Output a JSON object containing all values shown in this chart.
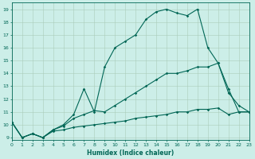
{
  "xlabel": "Humidex (Indice chaleur)",
  "bg_color": "#cceee8",
  "grid_color": "#aaccbb",
  "line_color": "#006655",
  "line1_x": [
    0,
    1,
    2,
    3,
    4,
    5,
    6,
    7,
    8,
    9,
    10,
    11,
    12,
    13,
    14,
    15,
    16,
    17,
    18,
    19,
    20,
    21,
    22,
    23
  ],
  "line1_y": [
    10.2,
    9.0,
    9.3,
    9.0,
    9.6,
    10.0,
    10.8,
    12.8,
    11.0,
    14.5,
    16.0,
    16.5,
    17.0,
    18.2,
    18.8,
    19.0,
    18.7,
    18.5,
    19.0,
    16.0,
    14.8,
    12.8,
    11.0,
    11.0
  ],
  "line2_x": [
    0,
    1,
    2,
    3,
    4,
    5,
    6,
    7,
    8,
    9,
    10,
    11,
    12,
    13,
    14,
    15,
    16,
    17,
    18,
    19,
    20,
    21,
    22,
    23
  ],
  "line2_y": [
    10.2,
    9.0,
    9.3,
    9.0,
    9.6,
    9.9,
    10.5,
    10.8,
    11.1,
    11.0,
    11.5,
    12.0,
    12.5,
    13.0,
    13.5,
    14.0,
    14.0,
    14.2,
    14.5,
    14.5,
    14.8,
    12.5,
    11.5,
    11.0
  ],
  "line3_x": [
    0,
    1,
    2,
    3,
    4,
    5,
    6,
    7,
    8,
    9,
    10,
    11,
    12,
    13,
    14,
    15,
    16,
    17,
    18,
    19,
    20,
    21,
    22,
    23
  ],
  "line3_y": [
    10.2,
    9.0,
    9.3,
    9.0,
    9.5,
    9.6,
    9.8,
    9.9,
    10.0,
    10.1,
    10.2,
    10.3,
    10.5,
    10.6,
    10.7,
    10.8,
    11.0,
    11.0,
    11.2,
    11.2,
    11.3,
    10.8,
    11.0,
    11.0
  ],
  "xlim": [
    0,
    23
  ],
  "ylim": [
    8.8,
    19.5
  ],
  "yticks": [
    9,
    10,
    11,
    12,
    13,
    14,
    15,
    16,
    17,
    18,
    19
  ],
  "xticks": [
    0,
    1,
    2,
    3,
    4,
    5,
    6,
    7,
    8,
    9,
    10,
    11,
    12,
    13,
    14,
    15,
    16,
    17,
    18,
    19,
    20,
    21,
    22,
    23
  ]
}
